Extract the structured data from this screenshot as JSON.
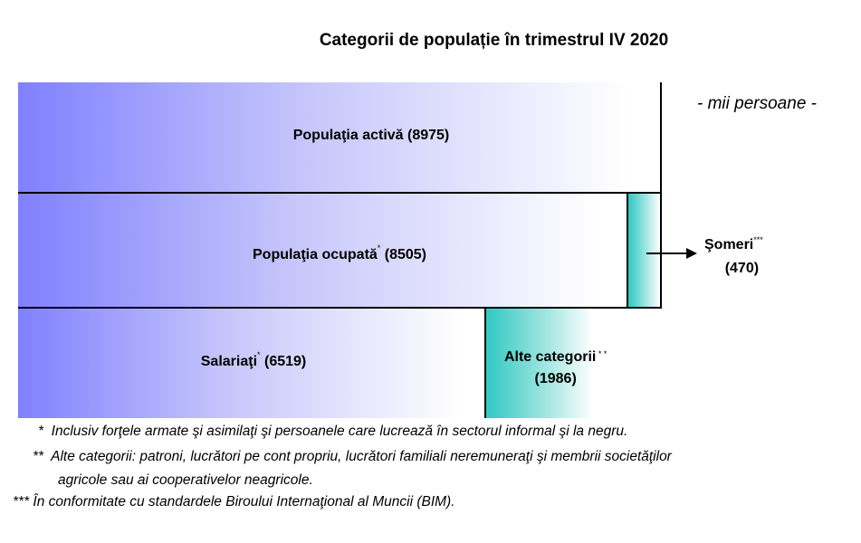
{
  "title": "Categorii de populație în trimestrul IV 2020",
  "unit_label": "- mii persoane -",
  "chart_data": {
    "type": "bar",
    "orientation": "horizontal-stacked",
    "title": "Categorii de populație în trimestrul IV 2020",
    "unit": "mii persoane",
    "rows": [
      {
        "label": "Populaţia activă",
        "value": 8975,
        "value_text": "(8975)",
        "mark": ""
      },
      {
        "label": "Populaţia ocupată",
        "value": 8505,
        "value_text": "(8505)",
        "mark": "*",
        "adjacent": {
          "label": "Şomeri",
          "value": 470,
          "value_text": "(470)",
          "mark": "***"
        }
      },
      {
        "label": "Salariaţi",
        "value": 6519,
        "value_text": "(6519)",
        "mark": "*"
      },
      {
        "label": "Alte categorii",
        "value": 1986,
        "value_text": "(1986)",
        "mark": "* *"
      }
    ],
    "colors": {
      "blue_start": "#8080ff",
      "teal_start": "#2fc9c1"
    }
  },
  "footnotes": [
    {
      "marker": "*",
      "text": "Inclusiv forţele armate şi asimilaţi şi persoanele care lucrează în sectorul informal şi la negru."
    },
    {
      "marker": "**",
      "text": "Alte categorii: patroni, lucrători pe cont propriu, lucrători familiali neremuneraţi şi membrii societăţilor",
      "continuation": "agricole sau ai cooperativelor neagricole."
    },
    {
      "marker": "***",
      "text": "În conformitate cu standardele Biroului Internaţional al Muncii (BIM)."
    }
  ]
}
